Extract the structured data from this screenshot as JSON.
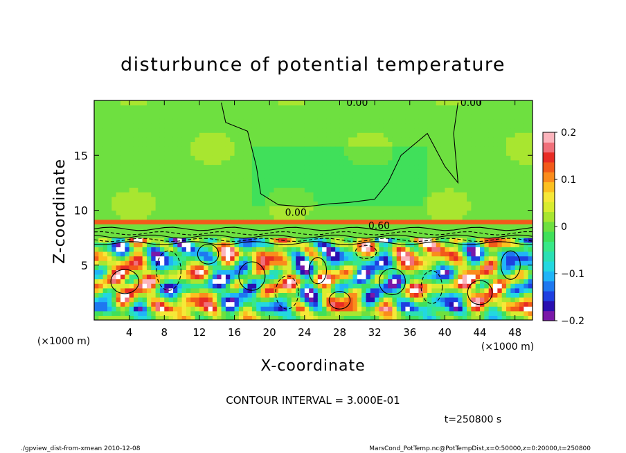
{
  "chart_data": {
    "type": "heatmap",
    "title": "disturbunce of potential temperature",
    "xlabel": "X-coordinate",
    "ylabel": "Z-coordinate",
    "x_unit": "(×1000 m)",
    "y_unit": "(×1000 m)",
    "xlim": [
      0,
      50
    ],
    "ylim": [
      0,
      20
    ],
    "x_ticks": [
      4,
      8,
      12,
      16,
      20,
      24,
      28,
      32,
      36,
      40,
      44,
      48
    ],
    "y_ticks": [
      5,
      10,
      15
    ],
    "colorbar": {
      "min": -0.2,
      "max": 0.2,
      "tick_labels": [
        "0.2",
        "0.1",
        "0",
        "−0.1",
        "−0.2"
      ],
      "tick_values": [
        0.2,
        0.1,
        0,
        -0.1,
        -0.2
      ],
      "colors": [
        "#7a18a8",
        "#2a0fb0",
        "#1f3fe0",
        "#1e78f0",
        "#20b4f8",
        "#23d8e0",
        "#2ae0b4",
        "#38e888",
        "#40e05a",
        "#6ee040",
        "#a8e630",
        "#d8ec30",
        "#f6e838",
        "#fcc020",
        "#fa8c1c",
        "#f25a1a",
        "#e82c24",
        "#f0707a",
        "#fcb4bc"
      ]
    },
    "contour_labels": [
      "0.00",
      "0.00",
      "0.00",
      "0.60"
    ],
    "contour_interval_text": "CONTOUR INTERVAL = 3.000E-01",
    "time_text": "t=250800  s",
    "footer_left": "./gpview_dist-from-xmean   2010-12-08",
    "footer_right": "MarsCond_PotTemp.nc@PotTempDist,x=0:50000,z=0:20000,t=250800"
  }
}
